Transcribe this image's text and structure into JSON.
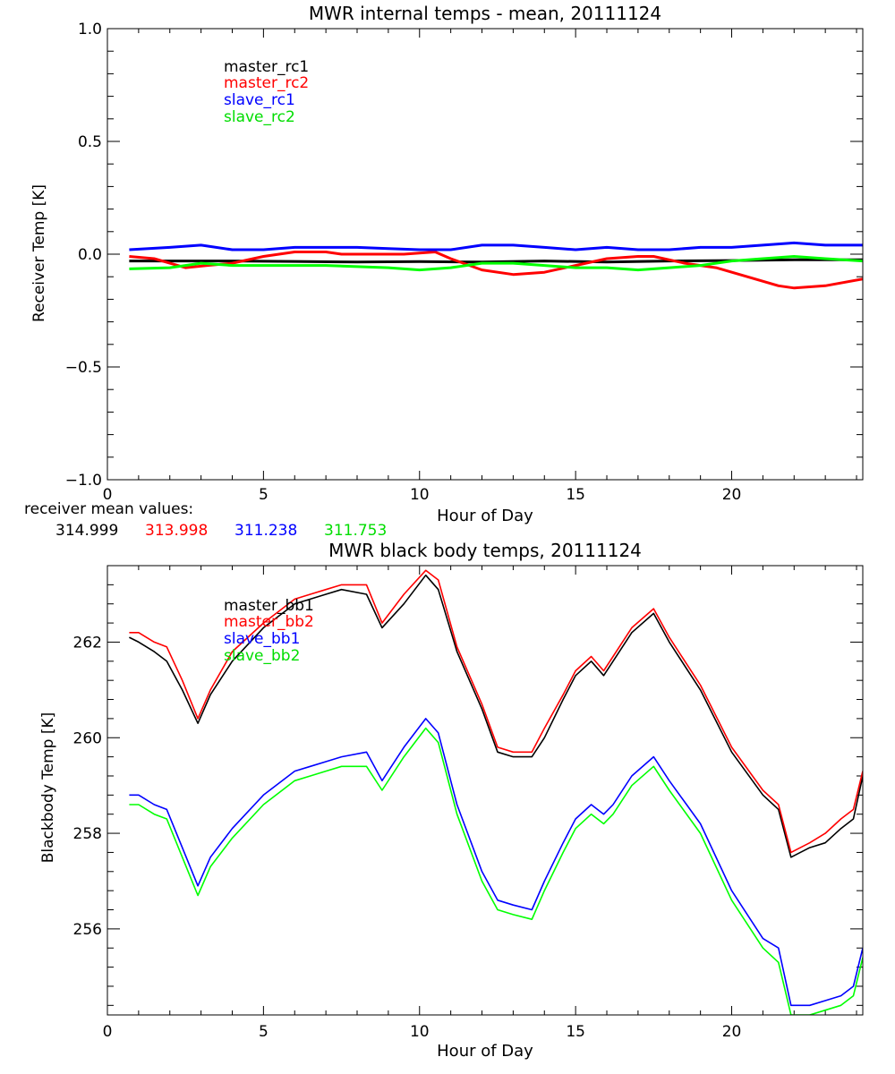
{
  "colors": {
    "master_1": "#000000",
    "master_2": "#ff0000",
    "slave_1": "#0000ff",
    "slave_2": "#00ff00",
    "axis": "#000000"
  },
  "receiver_mean": {
    "label": "receiver mean values:",
    "values": [
      "314.999",
      "313.998",
      "311.238",
      "311.753"
    ]
  },
  "chart_data": [
    {
      "type": "line",
      "title": "MWR internal temps - mean, 20111124",
      "xlabel": "Hour of Day",
      "ylabel": "Receiver Temp [K]",
      "xlim": [
        0,
        24.2
      ],
      "ylim": [
        -1.0,
        1.0
      ],
      "xticks": [
        0,
        5,
        10,
        15,
        20
      ],
      "yticks": [
        -1.0,
        -0.5,
        0.0,
        0.5,
        1.0
      ],
      "ytick_labels": [
        "−1.0",
        "−0.5",
        "0.0",
        "0.5",
        "1.0"
      ],
      "legend_position": "top-left",
      "series": [
        {
          "name": "master_rc1",
          "color_key": "master_1",
          "x": [
            0.7,
            2,
            4,
            6,
            8,
            10,
            12,
            14,
            16,
            18,
            20,
            22,
            24.2
          ],
          "y": [
            -0.03,
            -0.03,
            -0.03,
            -0.032,
            -0.035,
            -0.033,
            -0.035,
            -0.03,
            -0.035,
            -0.03,
            -0.028,
            -0.025,
            -0.025
          ]
        },
        {
          "name": "master_rc2",
          "color_key": "master_2",
          "x": [
            0.7,
            1.5,
            2.5,
            3.2,
            4,
            5,
            6,
            7,
            7.5,
            8.5,
            9.5,
            10.5,
            11,
            12,
            13,
            14,
            15,
            16,
            17,
            17.5,
            18.5,
            19.5,
            20.5,
            21.5,
            22,
            23,
            24.2
          ],
          "y": [
            -0.01,
            -0.02,
            -0.06,
            -0.05,
            -0.04,
            -0.01,
            0.01,
            0.01,
            0.0,
            0.0,
            0.0,
            0.01,
            -0.02,
            -0.07,
            -0.09,
            -0.08,
            -0.05,
            -0.02,
            -0.01,
            -0.01,
            -0.04,
            -0.06,
            -0.1,
            -0.14,
            -0.15,
            -0.14,
            -0.11
          ]
        },
        {
          "name": "slave_rc1",
          "color_key": "slave_1",
          "x": [
            0.7,
            2,
            3,
            4,
            5,
            6,
            7,
            8,
            9,
            10,
            11,
            12,
            13,
            14,
            15,
            16,
            17,
            18,
            19,
            20,
            21,
            22,
            23,
            24.2
          ],
          "y": [
            0.02,
            0.03,
            0.04,
            0.02,
            0.02,
            0.03,
            0.03,
            0.03,
            0.025,
            0.02,
            0.02,
            0.04,
            0.04,
            0.03,
            0.02,
            0.03,
            0.02,
            0.02,
            0.03,
            0.03,
            0.04,
            0.05,
            0.04,
            0.04
          ]
        },
        {
          "name": "slave_rc2",
          "color_key": "slave_2",
          "x": [
            0.7,
            2,
            3,
            4,
            5,
            6,
            7,
            8,
            9,
            10,
            11,
            12,
            13,
            14,
            15,
            16,
            17,
            18,
            19,
            20,
            21,
            22,
            23,
            24.2
          ],
          "y": [
            -0.065,
            -0.06,
            -0.04,
            -0.05,
            -0.05,
            -0.05,
            -0.05,
            -0.055,
            -0.06,
            -0.07,
            -0.06,
            -0.04,
            -0.04,
            -0.05,
            -0.06,
            -0.06,
            -0.07,
            -0.06,
            -0.05,
            -0.03,
            -0.02,
            -0.01,
            -0.02,
            -0.03
          ]
        }
      ]
    },
    {
      "type": "line",
      "title": "MWR black body temps, 20111124",
      "xlabel": "Hour of Day",
      "ylabel": "Blackbody Temp [K]",
      "xlim": [
        0,
        24.2
      ],
      "ylim": [
        254.2,
        263.6
      ],
      "xticks": [
        0,
        5,
        10,
        15,
        20
      ],
      "yticks": [
        256,
        258,
        260,
        262
      ],
      "ytick_labels": [
        "256",
        "258",
        "260",
        "262"
      ],
      "legend_position": "top-left",
      "series": [
        {
          "name": "master_bb1",
          "color_key": "master_1",
          "x": [
            0.7,
            1.0,
            1.5,
            1.9,
            2.4,
            2.9,
            3.3,
            4.0,
            5.0,
            6.0,
            6.5,
            7.0,
            7.5,
            8.3,
            8.8,
            9.5,
            10.2,
            10.6,
            11.2,
            12.0,
            12.5,
            13.0,
            13.6,
            14.0,
            14.6,
            15.0,
            15.5,
            15.9,
            16.2,
            16.8,
            17.5,
            18.0,
            19.0,
            20.0,
            21.0,
            21.5,
            21.9,
            22.5,
            23.0,
            23.5,
            23.9,
            24.2
          ],
          "y": [
            262.1,
            262.0,
            261.8,
            261.6,
            261.0,
            260.3,
            260.9,
            261.6,
            262.3,
            262.8,
            262.9,
            263.0,
            263.1,
            263.0,
            262.3,
            262.8,
            263.4,
            263.1,
            261.8,
            260.6,
            259.7,
            259.6,
            259.6,
            260.0,
            260.8,
            261.3,
            261.6,
            261.3,
            261.6,
            262.2,
            262.6,
            262.0,
            261.0,
            259.7,
            258.8,
            258.5,
            257.5,
            257.7,
            257.8,
            258.1,
            258.3,
            259.2
          ]
        },
        {
          "name": "master_bb2",
          "color_key": "master_2",
          "x": [
            0.7,
            1.0,
            1.5,
            1.9,
            2.4,
            2.9,
            3.3,
            4.0,
            5.0,
            6.0,
            6.5,
            7.0,
            7.5,
            8.3,
            8.8,
            9.5,
            10.2,
            10.6,
            11.2,
            12.0,
            12.5,
            13.0,
            13.6,
            14.0,
            14.6,
            15.0,
            15.5,
            15.9,
            16.2,
            16.8,
            17.5,
            18.0,
            19.0,
            20.0,
            21.0,
            21.5,
            21.9,
            22.5,
            23.0,
            23.5,
            23.9,
            24.2
          ],
          "y": [
            262.2,
            262.2,
            262.0,
            261.9,
            261.2,
            260.4,
            261.0,
            261.8,
            262.4,
            262.9,
            263.0,
            263.1,
            263.2,
            263.2,
            262.4,
            263.0,
            263.5,
            263.3,
            261.9,
            260.7,
            259.8,
            259.7,
            259.7,
            260.2,
            260.9,
            261.4,
            261.7,
            261.4,
            261.7,
            262.3,
            262.7,
            262.1,
            261.1,
            259.8,
            258.9,
            258.6,
            257.6,
            257.8,
            258.0,
            258.3,
            258.5,
            259.3
          ]
        },
        {
          "name": "slave_bb1",
          "color_key": "slave_1",
          "x": [
            0.7,
            1.0,
            1.5,
            1.9,
            2.4,
            2.9,
            3.3,
            4.0,
            5.0,
            6.0,
            6.5,
            7.0,
            7.5,
            8.3,
            8.8,
            9.5,
            10.2,
            10.6,
            11.2,
            12.0,
            12.5,
            13.0,
            13.6,
            14.0,
            14.6,
            15.0,
            15.5,
            15.9,
            16.2,
            16.8,
            17.5,
            18.0,
            19.0,
            20.0,
            21.0,
            21.5,
            21.9,
            22.5,
            23.0,
            23.5,
            23.9,
            24.2
          ],
          "y": [
            258.8,
            258.8,
            258.6,
            258.5,
            257.7,
            256.9,
            257.5,
            258.1,
            258.8,
            259.3,
            259.4,
            259.5,
            259.6,
            259.7,
            259.1,
            259.8,
            260.4,
            260.1,
            258.6,
            257.2,
            256.6,
            256.5,
            256.4,
            257.0,
            257.8,
            258.3,
            258.6,
            258.4,
            258.6,
            259.2,
            259.6,
            259.1,
            258.2,
            256.8,
            255.8,
            255.6,
            254.4,
            254.4,
            254.5,
            254.6,
            254.8,
            255.6
          ]
        },
        {
          "name": "slave_bb2",
          "color_key": "slave_2",
          "x": [
            0.7,
            1.0,
            1.5,
            1.9,
            2.4,
            2.9,
            3.3,
            4.0,
            5.0,
            6.0,
            6.5,
            7.0,
            7.5,
            8.3,
            8.8,
            9.5,
            10.2,
            10.6,
            11.2,
            12.0,
            12.5,
            13.0,
            13.6,
            14.0,
            14.6,
            15.0,
            15.5,
            15.9,
            16.2,
            16.8,
            17.5,
            18.0,
            19.0,
            20.0,
            21.0,
            21.5,
            21.9,
            22.5,
            23.0,
            23.5,
            23.9,
            24.2
          ],
          "y": [
            258.6,
            258.6,
            258.4,
            258.3,
            257.5,
            256.7,
            257.3,
            257.9,
            258.6,
            259.1,
            259.2,
            259.3,
            259.4,
            259.4,
            258.9,
            259.6,
            260.2,
            259.9,
            258.4,
            257.0,
            256.4,
            256.3,
            256.2,
            256.8,
            257.6,
            258.1,
            258.4,
            258.2,
            258.4,
            259.0,
            259.4,
            258.9,
            258.0,
            256.6,
            255.6,
            255.3,
            254.2,
            254.2,
            254.3,
            254.4,
            254.6,
            255.4
          ]
        }
      ]
    }
  ]
}
